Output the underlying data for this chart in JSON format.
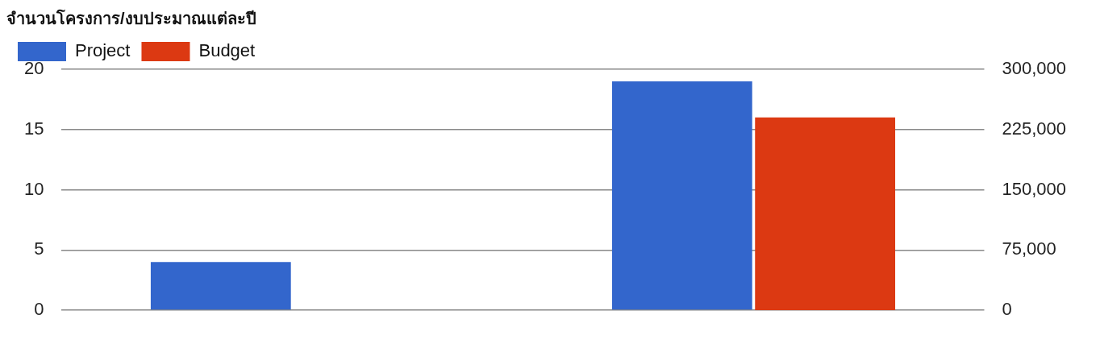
{
  "chart_data": {
    "type": "bar",
    "title": "จำนวนโครงการ/งบประมาณแต่ละปี",
    "categories": [
      null,
      null
    ],
    "series": [
      {
        "name": "Project",
        "color": "#3366cc",
        "values": [
          4,
          19
        ]
      },
      {
        "name": "Budget",
        "color": "#dc3912",
        "values": [
          null,
          240000
        ],
        "axis": "y2"
      }
    ],
    "ylim": [
      0,
      20
    ],
    "yticks": [
      0,
      5,
      10,
      15,
      20
    ],
    "y2lim": [
      0,
      300000
    ],
    "y2ticks": [
      0,
      {
        "value": 75000,
        "label": "75,000"
      },
      {
        "value": 150000,
        "label": "150,000"
      },
      {
        "value": 225000,
        "label": "225,000"
      },
      {
        "value": 300000,
        "label": "300,000"
      }
    ],
    "grid": "y",
    "legend": "top left"
  }
}
